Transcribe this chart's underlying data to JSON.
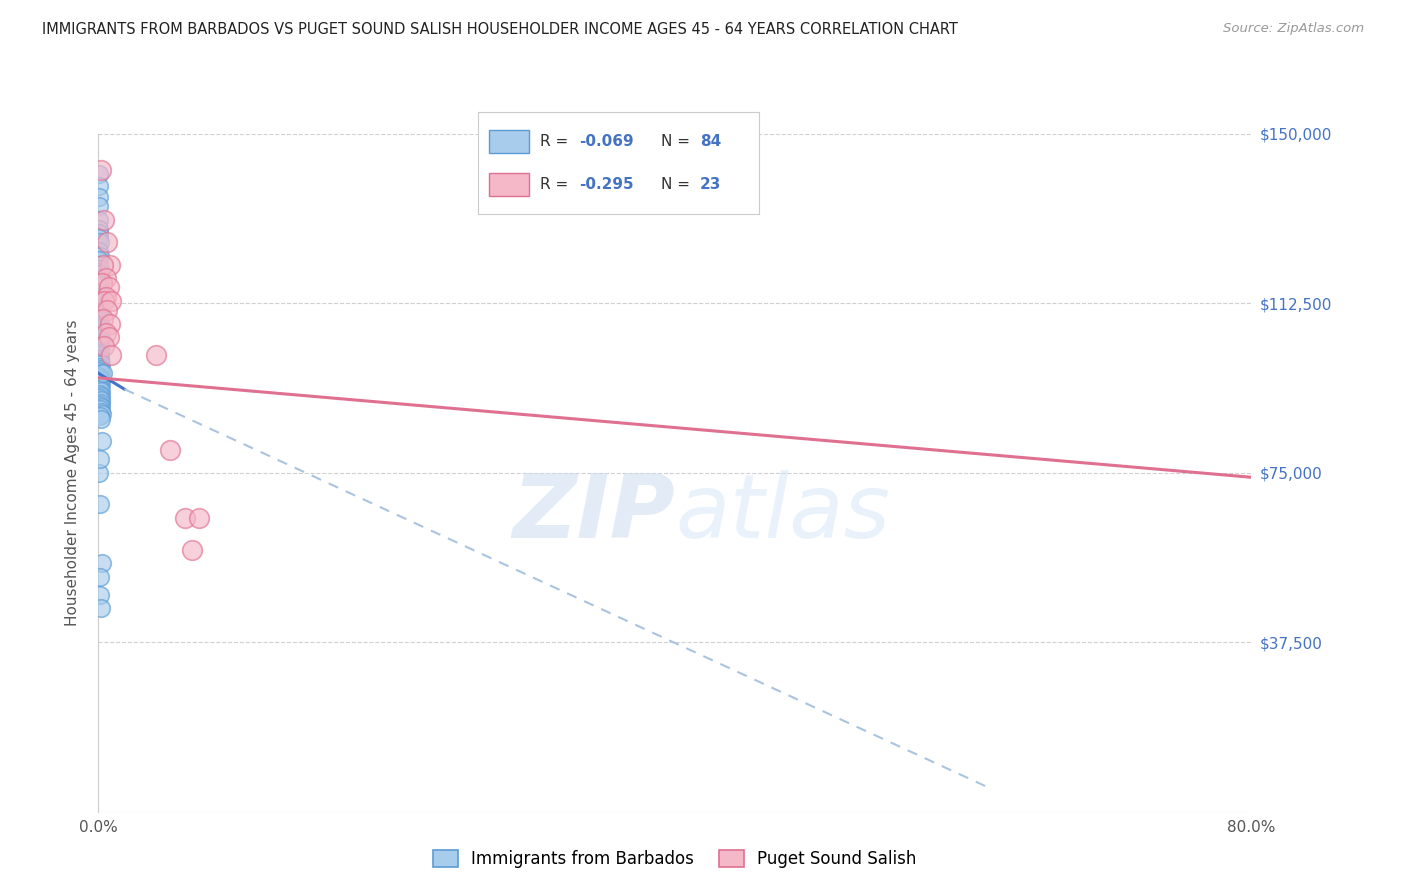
{
  "title": "IMMIGRANTS FROM BARBADOS VS PUGET SOUND SALISH HOUSEHOLDER INCOME AGES 45 - 64 YEARS CORRELATION CHART",
  "source": "Source: ZipAtlas.com",
  "ylabel": "Householder Income Ages 45 - 64 years",
  "xlim": [
    0.0,
    0.8
  ],
  "ylim": [
    0,
    150000
  ],
  "yticks": [
    0,
    37500,
    75000,
    112500,
    150000
  ],
  "ytick_labels": [
    "",
    "$37,500",
    "$75,000",
    "$112,500",
    "$150,000"
  ],
  "xticks": [
    0.0,
    0.2,
    0.4,
    0.6,
    0.8
  ],
  "xtick_labels": [
    "0.0%",
    "",
    "",
    "",
    "80.0%"
  ],
  "legend_r1_label": "-0.069",
  "legend_n1_label": "84",
  "legend_r2_label": "-0.295",
  "legend_n2_label": "23",
  "color_blue": "#a8ccec",
  "color_blue_edge": "#5b9bd5",
  "color_pink": "#f4b8c8",
  "color_pink_edge": "#e07090",
  "line_color_blue": "#4472c4",
  "line_color_pink": "#e07090",
  "line_color_dashed": "#aac4e0",
  "watermark_zip": "ZIP",
  "watermark_atlas": "atlas",
  "background_color": "#ffffff",
  "grid_color": "#d0d0d0",
  "blue_points": [
    [
      0.0003,
      141000
    ],
    [
      0.0006,
      138500
    ],
    [
      0.0004,
      136000
    ],
    [
      0.0007,
      134000
    ],
    [
      0.0003,
      131000
    ],
    [
      0.0005,
      129000
    ],
    [
      0.0004,
      128000
    ],
    [
      0.0007,
      127000
    ],
    [
      0.0008,
      126000
    ],
    [
      0.0005,
      124000
    ],
    [
      0.001,
      123000
    ],
    [
      0.0006,
      122000
    ],
    [
      0.0004,
      121000
    ],
    [
      0.0008,
      120000
    ],
    [
      0.0006,
      119500
    ],
    [
      0.001,
      119000
    ],
    [
      0.0007,
      118000
    ],
    [
      0.0005,
      117000
    ],
    [
      0.0009,
      116500
    ],
    [
      0.0004,
      116000
    ],
    [
      0.0011,
      115000
    ],
    [
      0.0008,
      114000
    ],
    [
      0.0006,
      113000
    ],
    [
      0.0013,
      112500
    ],
    [
      0.0007,
      112000
    ],
    [
      0.001,
      111500
    ],
    [
      0.0009,
      111000
    ],
    [
      0.0011,
      110500
    ],
    [
      0.0005,
      110000
    ],
    [
      0.0007,
      109500
    ],
    [
      0.0013,
      109000
    ],
    [
      0.0006,
      108500
    ],
    [
      0.001,
      108000
    ],
    [
      0.0008,
      107500
    ],
    [
      0.0012,
      107000
    ],
    [
      0.0009,
      106500
    ],
    [
      0.0004,
      106000
    ],
    [
      0.0007,
      105500
    ],
    [
      0.0015,
      105000
    ],
    [
      0.001,
      104500
    ],
    [
      0.0006,
      104000
    ],
    [
      0.0012,
      103500
    ],
    [
      0.0008,
      103000
    ],
    [
      0.0014,
      102500
    ],
    [
      0.0007,
      102000
    ],
    [
      0.0011,
      101500
    ],
    [
      0.0005,
      101000
    ],
    [
      0.0009,
      100500
    ],
    [
      0.0013,
      100000
    ],
    [
      0.0006,
      99500
    ],
    [
      0.0016,
      99000
    ],
    [
      0.0008,
      98500
    ],
    [
      0.001,
      98000
    ],
    [
      0.0012,
      97500
    ],
    [
      0.0017,
      97000
    ],
    [
      0.0007,
      96500
    ],
    [
      0.0014,
      96000
    ],
    [
      0.0019,
      95500
    ],
    [
      0.0009,
      95000
    ],
    [
      0.0015,
      94500
    ],
    [
      0.0011,
      94000
    ],
    [
      0.0013,
      93500
    ],
    [
      0.0021,
      93000
    ],
    [
      0.001,
      92500
    ],
    [
      0.0017,
      92000
    ],
    [
      0.0012,
      91500
    ],
    [
      0.0018,
      91000
    ],
    [
      0.0015,
      90500
    ],
    [
      0.0008,
      90000
    ],
    [
      0.002,
      89500
    ],
    [
      0.0014,
      89000
    ],
    [
      0.0016,
      88500
    ],
    [
      0.0022,
      88000
    ],
    [
      0.001,
      87500
    ],
    [
      0.0019,
      87000
    ],
    [
      0.0012,
      68000
    ],
    [
      0.0023,
      55000
    ],
    [
      0.0014,
      52000
    ],
    [
      0.0009,
      48000
    ],
    [
      0.0016,
      45000
    ],
    [
      0.0001,
      75000
    ],
    [
      0.003,
      97000
    ],
    [
      0.0026,
      82000
    ],
    [
      0.0011,
      78000
    ]
  ],
  "pink_points": [
    [
      0.0015,
      142000
    ],
    [
      0.004,
      131000
    ],
    [
      0.006,
      126000
    ],
    [
      0.008,
      121000
    ],
    [
      0.003,
      121000
    ],
    [
      0.005,
      118000
    ],
    [
      0.0025,
      117000
    ],
    [
      0.007,
      116000
    ],
    [
      0.005,
      114000
    ],
    [
      0.004,
      113000
    ],
    [
      0.009,
      113000
    ],
    [
      0.006,
      111000
    ],
    [
      0.003,
      109000
    ],
    [
      0.008,
      108000
    ],
    [
      0.005,
      106000
    ],
    [
      0.007,
      105000
    ],
    [
      0.004,
      103000
    ],
    [
      0.009,
      101000
    ],
    [
      0.04,
      101000
    ],
    [
      0.06,
      65000
    ],
    [
      0.07,
      65000
    ],
    [
      0.065,
      58000
    ],
    [
      0.05,
      80000
    ]
  ],
  "blue_solid_line": [
    [
      0.0,
      97000
    ],
    [
      0.018,
      93500
    ]
  ],
  "blue_dashed_line": [
    [
      0.018,
      93500
    ],
    [
      0.62,
      5000
    ]
  ],
  "pink_solid_line": [
    [
      0.0,
      96000
    ],
    [
      0.8,
      74000
    ]
  ]
}
